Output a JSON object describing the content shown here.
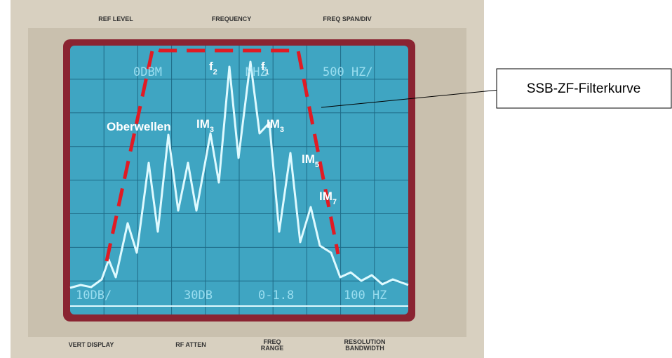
{
  "panel": {
    "top": [
      "REF LEVEL",
      "FREQUENCY",
      "FREQ SPAN/DIV"
    ],
    "bottom": [
      [
        "VERT DISPLAY"
      ],
      [
        "RF ATTEN"
      ],
      [
        "FREQ",
        "RANGE"
      ],
      [
        "RESOLUTION",
        "BANDWIDTH"
      ]
    ]
  },
  "screen": {
    "top": [
      "0DBM",
      "MHZ",
      "500 HZ/"
    ],
    "bottom": [
      "10DB/",
      "30DB",
      "0-1.8",
      "100 HZ"
    ]
  },
  "annotations": [
    {
      "base": "f",
      "sub": "2"
    },
    {
      "base": "f",
      "sub": "1"
    },
    {
      "base": "Oberwellen"
    },
    {
      "base": "IM",
      "sub": "3"
    },
    {
      "base": "IM",
      "sub": "3"
    },
    {
      "base": "IM",
      "sub": "5"
    },
    {
      "base": "IM",
      "sub": "7"
    }
  ],
  "callout": "SSB-ZF-Filterkurve"
}
